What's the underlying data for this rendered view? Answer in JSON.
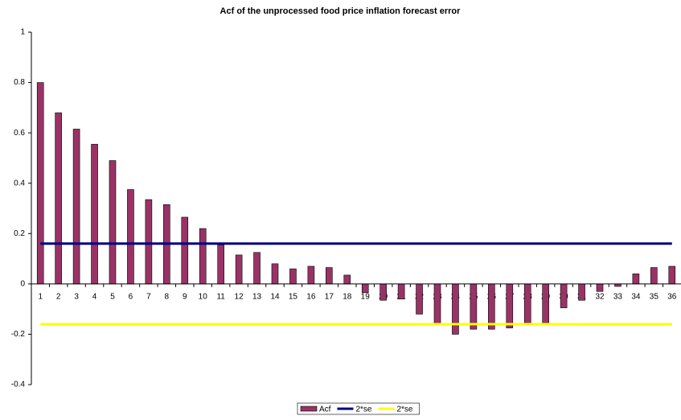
{
  "chart_data": {
    "type": "bar",
    "title": "Acf of the unprocessed food price inflation forecast error",
    "categories": [
      1,
      2,
      3,
      4,
      5,
      6,
      7,
      8,
      9,
      10,
      11,
      12,
      13,
      14,
      15,
      16,
      17,
      18,
      19,
      20,
      21,
      22,
      23,
      24,
      25,
      26,
      27,
      28,
      29,
      30,
      31,
      32,
      33,
      34,
      35,
      36
    ],
    "series": [
      {
        "name": "Acf",
        "type": "bar",
        "color": "#993366",
        "values": [
          0.8,
          0.68,
          0.615,
          0.555,
          0.49,
          0.375,
          0.335,
          0.315,
          0.265,
          0.22,
          0.155,
          0.115,
          0.125,
          0.08,
          0.06,
          0.07,
          0.065,
          0.035,
          -0.035,
          -0.065,
          -0.06,
          -0.12,
          -0.16,
          -0.2,
          -0.18,
          -0.18,
          -0.175,
          -0.16,
          -0.16,
          -0.095,
          -0.065,
          -0.03,
          -0.01,
          0.04,
          0.065,
          0.07
        ]
      },
      {
        "name": "2*se",
        "type": "line",
        "color": "#000080",
        "values": [
          0.16,
          0.16,
          0.16,
          0.16,
          0.16,
          0.16,
          0.16,
          0.16,
          0.16,
          0.16,
          0.16,
          0.16,
          0.16,
          0.16,
          0.16,
          0.16,
          0.16,
          0.16,
          0.16,
          0.16,
          0.16,
          0.16,
          0.16,
          0.16,
          0.16,
          0.16,
          0.16,
          0.16,
          0.16,
          0.16,
          0.16,
          0.16,
          0.16,
          0.16,
          0.16,
          0.16
        ]
      },
      {
        "name": "2*se",
        "type": "line",
        "color": "#ffff00",
        "values": [
          -0.16,
          -0.16,
          -0.16,
          -0.16,
          -0.16,
          -0.16,
          -0.16,
          -0.16,
          -0.16,
          -0.16,
          -0.16,
          -0.16,
          -0.16,
          -0.16,
          -0.16,
          -0.16,
          -0.16,
          -0.16,
          -0.16,
          -0.16,
          -0.16,
          -0.16,
          -0.16,
          -0.16,
          -0.16,
          -0.16,
          -0.16,
          -0.16,
          -0.16,
          -0.16,
          -0.16,
          -0.16,
          -0.16,
          -0.16,
          -0.16,
          -0.16
        ]
      }
    ],
    "ylim": [
      -0.4,
      1
    ],
    "yticks": [
      -0.4,
      -0.2,
      0,
      0.2,
      0.4,
      0.6,
      0.8,
      1
    ],
    "grid": false,
    "legend": "bottom"
  }
}
